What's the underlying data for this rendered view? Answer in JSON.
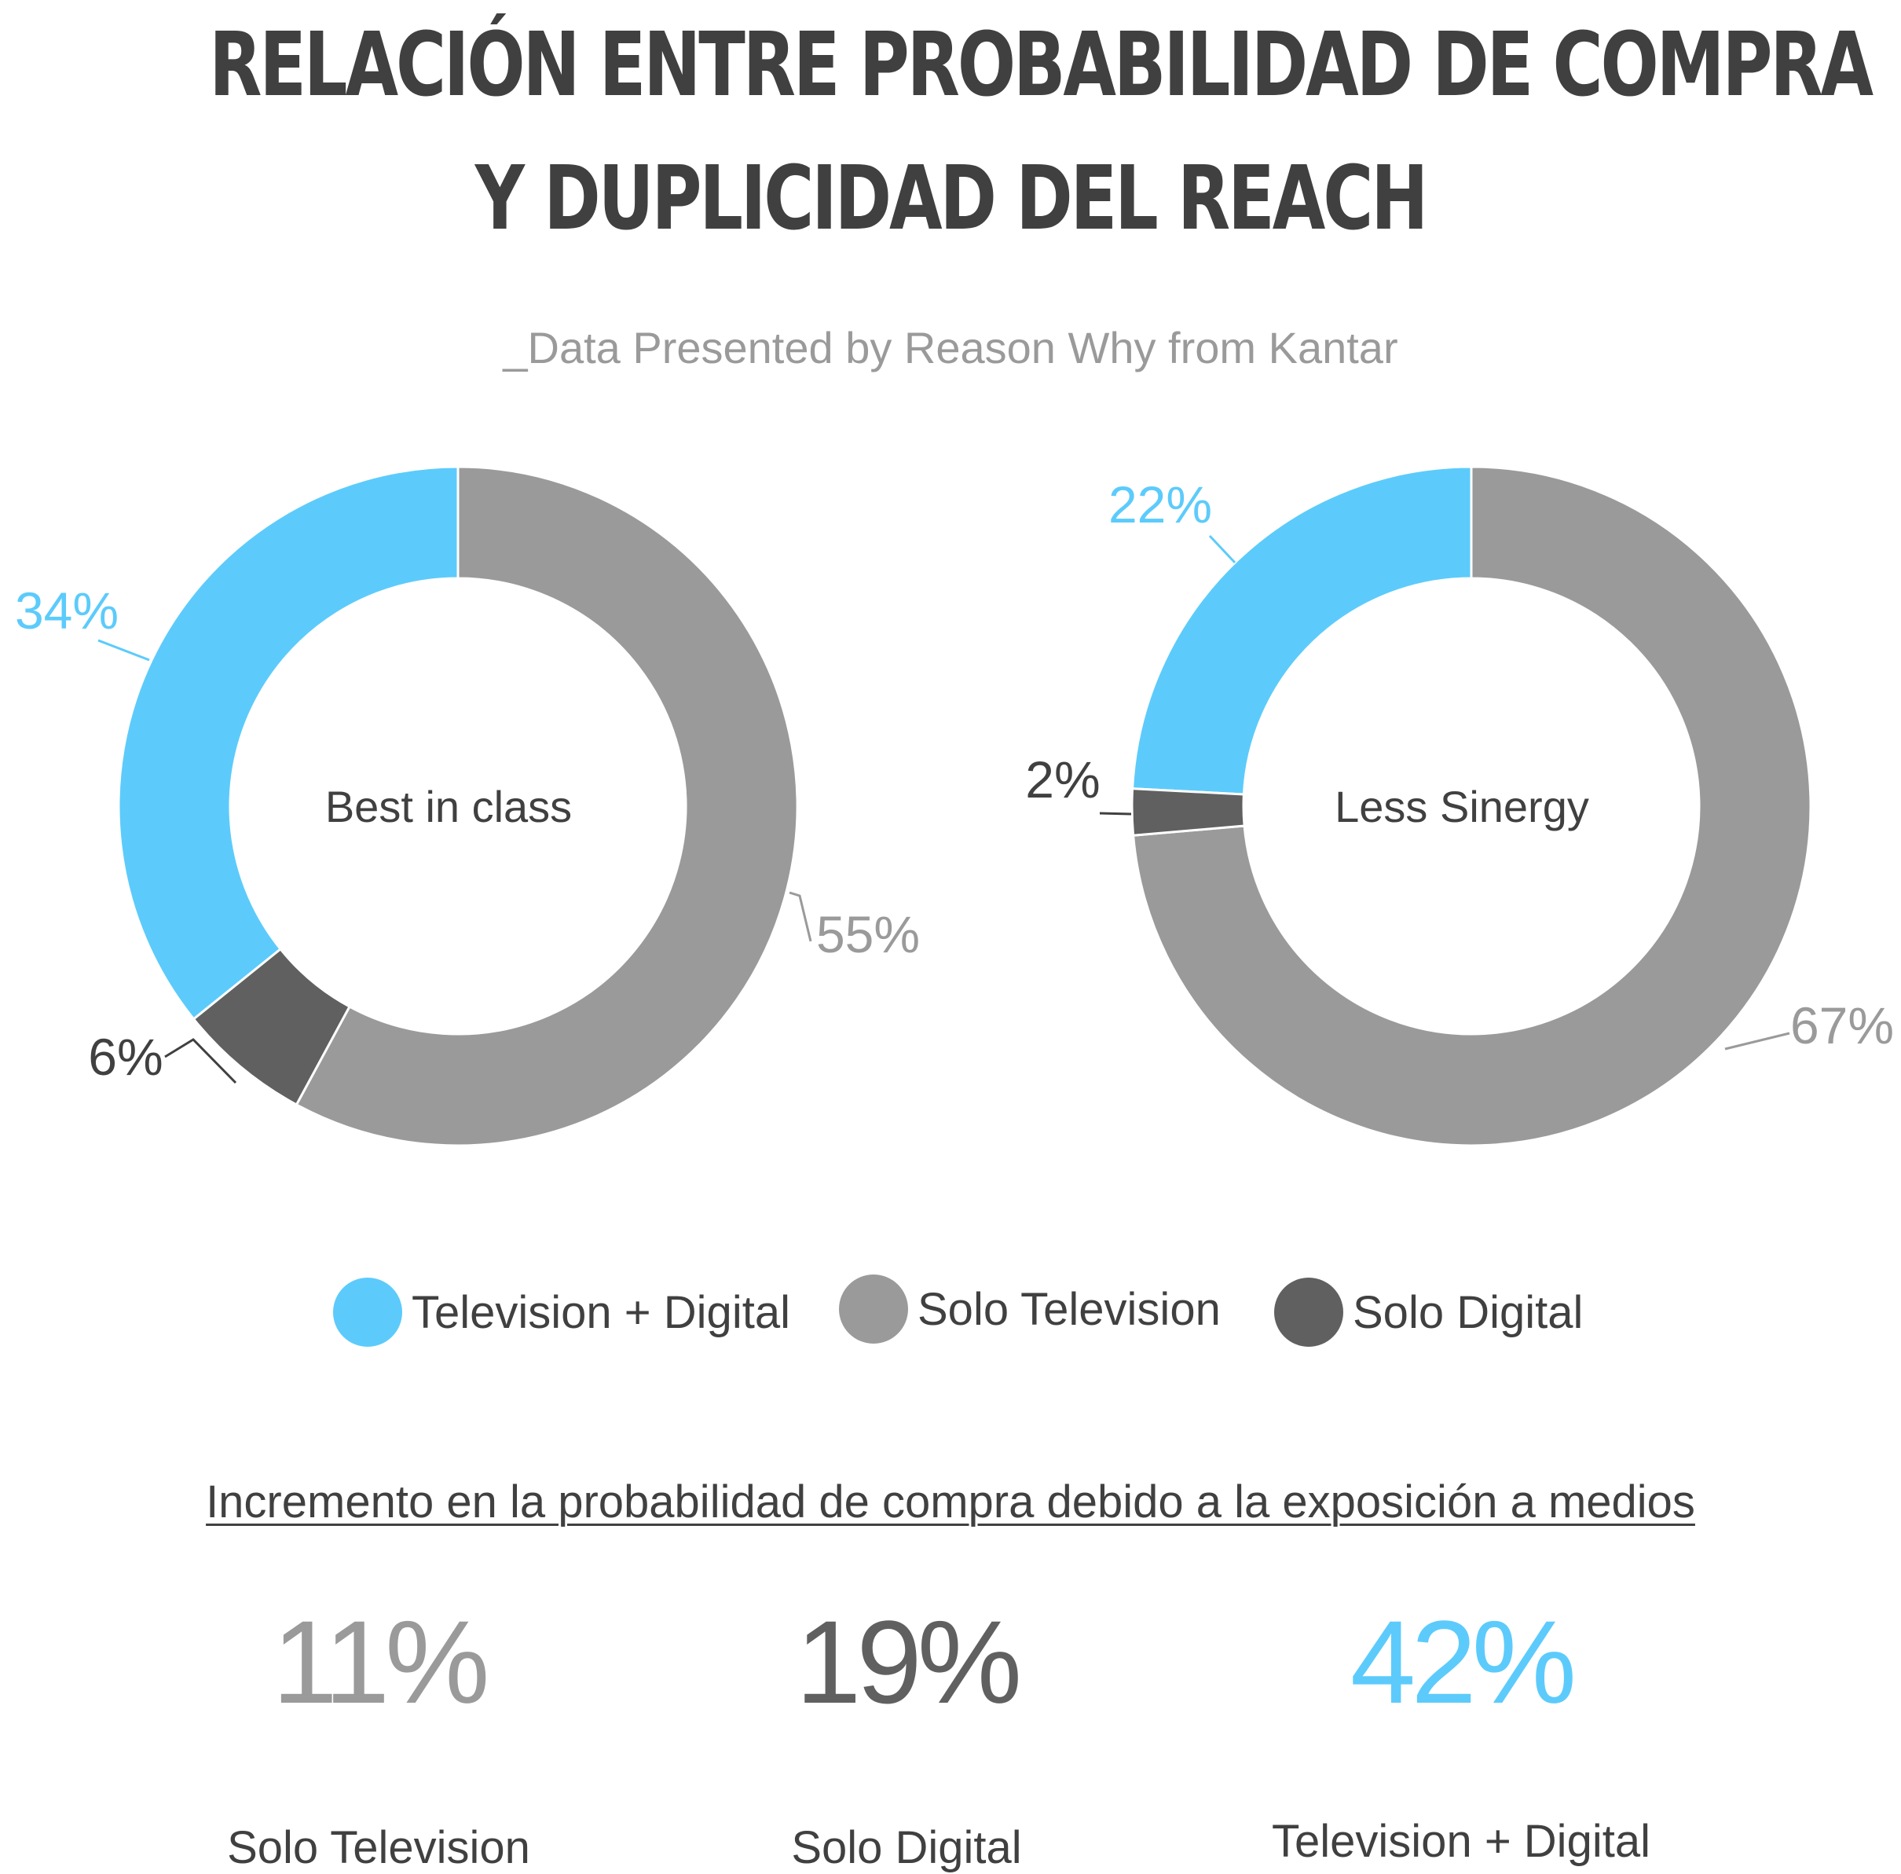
{
  "header": {
    "title_line1": "RELACIÓN ENTRE PROBABILIDAD DE COMPRA",
    "title_line2": "Y DUPLICIDAD DEL REACH",
    "subtitle": "_Data Presented by Reason Why from Kantar"
  },
  "colors": {
    "tv_digital": "#5ccbfb",
    "solo_tv": "#9a9a9a",
    "solo_digital": "#606060",
    "text_dark": "#404040",
    "text_gray": "#9a9a9a"
  },
  "chart_data": [
    {
      "type": "pie",
      "variant": "donut",
      "center_label": "Best in class",
      "slices": [
        {
          "name": "Television + Digital",
          "value": 34,
          "label": "34%"
        },
        {
          "name": "Solo Television",
          "value": 55,
          "label": "55%"
        },
        {
          "name": "Solo Digital",
          "value": 6,
          "label": "6%"
        }
      ]
    },
    {
      "type": "pie",
      "variant": "donut",
      "center_label": "Less Sinergy",
      "slices": [
        {
          "name": "Television + Digital",
          "value": 22,
          "label": "22%"
        },
        {
          "name": "Solo Television",
          "value": 67,
          "label": "67%"
        },
        {
          "name": "Solo Digital",
          "value": 2,
          "label": "2%"
        }
      ]
    }
  ],
  "legend": [
    {
      "label": "Television + Digital",
      "color": "#5ccbfb"
    },
    {
      "label": "Solo Television",
      "color": "#9a9a9a"
    },
    {
      "label": "Solo Digital",
      "color": "#606060"
    }
  ],
  "increment": {
    "heading": "Incremento en la probabilidad de compra debido a la exposición a medios",
    "stats": [
      {
        "value": "11%",
        "label": "Solo Television",
        "color": "#9a9a9a"
      },
      {
        "value": "19%",
        "label": "Solo Digital",
        "color": "#606060"
      },
      {
        "value": "42%",
        "label": "Television + Digital",
        "color": "#5ccbfb"
      }
    ]
  }
}
